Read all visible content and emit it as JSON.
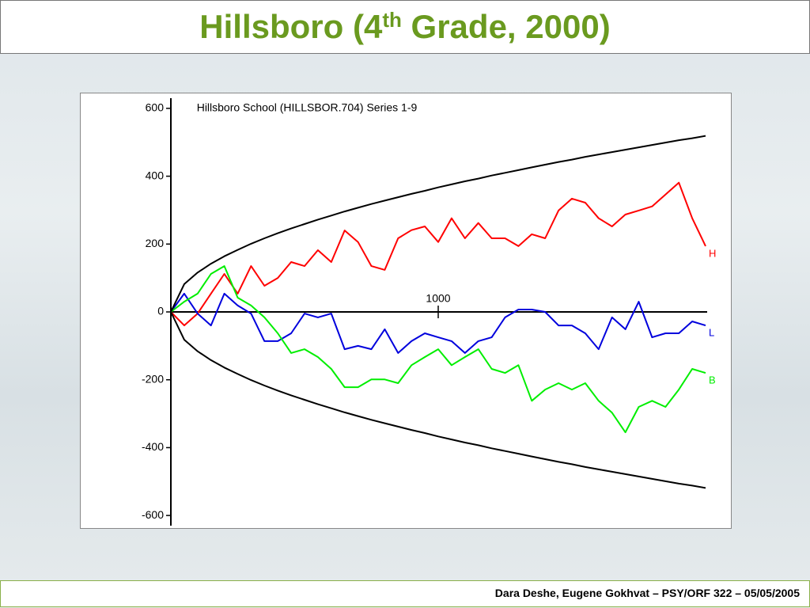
{
  "header": {
    "title_prefix": "Hillsboro (4",
    "title_sup": "th",
    "title_suffix": " Grade, 2000)"
  },
  "footer": {
    "text": "Dara Deshe, Eugene Gokhvat  –  PSY/ORF 322  –  05/05/2005"
  },
  "chart_data": {
    "type": "line",
    "title": "Hillsboro School (HILLSBOR.704) Series 1-9",
    "x": [
      0,
      50,
      100,
      150,
      200,
      250,
      300,
      350,
      400,
      450,
      500,
      550,
      600,
      650,
      700,
      750,
      800,
      850,
      900,
      950,
      1000,
      1050,
      1100,
      1150,
      1200,
      1250,
      1300,
      1350,
      1400,
      1450,
      1500,
      1550,
      1600,
      1650,
      1700,
      1750,
      1800,
      1850,
      1900,
      1950,
      2000
    ],
    "xlim": [
      0,
      2000
    ],
    "xticks": [
      1000
    ],
    "ylim": [
      -630,
      630
    ],
    "yticks": [
      -600,
      -400,
      -200,
      0,
      200,
      400,
      600
    ],
    "series": [
      {
        "name": "H",
        "color": "#ff0000",
        "values": [
          0,
          -40,
          -5,
          54,
          112,
          54,
          135,
          77,
          100,
          147,
          135,
          182,
          147,
          240,
          206,
          135,
          124,
          217,
          241,
          252,
          206,
          276,
          217,
          262,
          217,
          217,
          194,
          229,
          217,
          299,
          334,
          322,
          276,
          252,
          287,
          299,
          311,
          346,
          381,
          276,
          194
        ]
      },
      {
        "name": "L",
        "color": "#0000dd",
        "values": [
          0,
          54,
          -5,
          -40,
          54,
          19,
          -5,
          -86,
          -86,
          -63,
          -5,
          -16,
          -5,
          -110,
          -100,
          -110,
          -51,
          -121,
          -86,
          -63,
          -75,
          -86,
          -121,
          -86,
          -75,
          -16,
          7,
          7,
          0,
          -40,
          -40,
          -63,
          -110,
          -16,
          -51,
          30,
          -75,
          -63,
          -63,
          -28,
          -40
        ]
      },
      {
        "name": "B",
        "color": "#00ee00",
        "values": [
          0,
          30,
          54,
          112,
          135,
          42,
          19,
          -16,
          -63,
          -121,
          -110,
          -133,
          -168,
          -222,
          -222,
          -199,
          -199,
          -210,
          -157,
          -133,
          -110,
          -157,
          -133,
          -110,
          -168,
          -180,
          -157,
          -262,
          -229,
          -210,
          -229,
          -210,
          -262,
          -297,
          -355,
          -280,
          -262,
          -280,
          -229,
          -168,
          -180
        ]
      },
      {
        "color": "#000000",
        "values": [
          0,
          82,
          116,
          142,
          164,
          183,
          201,
          217,
          232,
          246,
          259,
          272,
          284,
          296,
          307,
          318,
          328,
          338,
          348,
          357,
          367,
          376,
          385,
          393,
          402,
          410,
          418,
          426,
          434,
          442,
          449,
          457,
          464,
          471,
          478,
          485,
          492,
          499,
          506,
          512,
          519
        ]
      },
      {
        "color": "#000000",
        "values": [
          0,
          -82,
          -116,
          -142,
          -164,
          -183,
          -201,
          -217,
          -232,
          -246,
          -259,
          -272,
          -284,
          -296,
          -307,
          -318,
          -328,
          -338,
          -348,
          -357,
          -367,
          -376,
          -385,
          -393,
          -402,
          -410,
          -418,
          -426,
          -434,
          -442,
          -449,
          -457,
          -464,
          -471,
          -478,
          -485,
          -492,
          -499,
          -506,
          -512,
          -519
        ]
      }
    ]
  }
}
